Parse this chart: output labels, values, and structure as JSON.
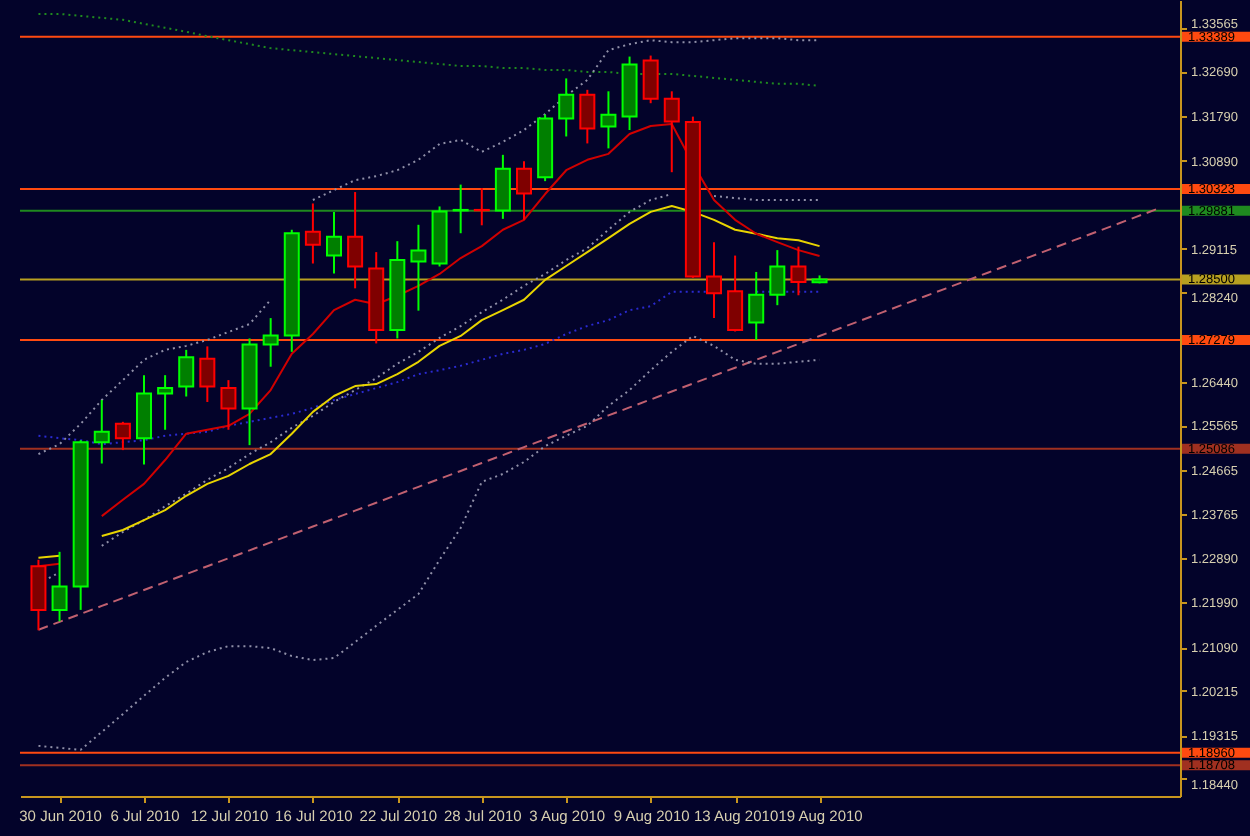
{
  "chart_data": {
    "type": "candlestick",
    "categories": [
      null,
      "30 Jun 2010",
      null,
      null,
      null,
      "6 Jul 2010",
      null,
      null,
      null,
      "12 Jul 2010",
      null,
      null,
      null,
      "16 Jul 2010",
      null,
      null,
      null,
      "22 Jul 2010",
      null,
      null,
      null,
      "28 Jul 2010",
      null,
      null,
      null,
      "3 Aug 2010",
      null,
      null,
      null,
      "9 Aug 2010",
      null,
      null,
      null,
      "13 Aug 2010",
      null,
      null,
      null,
      "19 Aug 2010",
      null,
      null,
      null,
      null,
      null,
      null,
      null,
      null,
      null,
      null,
      null,
      null,
      null,
      null,
      null,
      null
    ],
    "ohlc": [
      [
        1.2272,
        1.2285,
        1.2143,
        1.2184
      ],
      [
        1.2184,
        1.2301,
        1.2161,
        1.2231
      ],
      [
        1.2231,
        1.2526,
        1.2184,
        1.2522
      ],
      [
        1.2522,
        1.2607,
        1.2479,
        1.2543
      ],
      [
        1.2559,
        1.2563,
        1.2506,
        1.253
      ],
      [
        1.253,
        1.2657,
        1.2477,
        1.262
      ],
      [
        1.262,
        1.2657,
        1.2547,
        1.2631
      ],
      [
        1.2634,
        1.2708,
        1.2614,
        1.2693
      ],
      [
        1.269,
        1.2715,
        1.2603,
        1.2634
      ],
      [
        1.2631,
        1.2647,
        1.2547,
        1.259
      ],
      [
        1.259,
        1.2731,
        1.2516,
        1.2719
      ],
      [
        1.2719,
        1.2772,
        1.2674,
        1.2737
      ],
      [
        1.2737,
        1.295,
        1.2704,
        1.2943
      ],
      [
        1.2946,
        1.3003,
        1.2882,
        1.292
      ],
      [
        1.2898,
        1.2986,
        1.2862,
        1.2936
      ],
      [
        1.2936,
        1.3026,
        1.2832,
        1.2876
      ],
      [
        1.2872,
        1.2905,
        1.2721,
        1.2748
      ],
      [
        1.2748,
        1.2927,
        1.2731,
        1.2889
      ],
      [
        1.2886,
        1.296,
        1.2787,
        1.2908
      ],
      [
        1.2882,
        1.2997,
        1.2876,
        1.2987
      ],
      [
        1.2989,
        1.3041,
        1.2943,
        1.299
      ],
      [
        1.299,
        1.3034,
        1.2959,
        1.2989
      ],
      [
        1.2989,
        1.3101,
        1.2972,
        1.3073
      ],
      [
        1.3073,
        1.3088,
        1.297,
        1.3023
      ],
      [
        1.3056,
        1.3182,
        1.3048,
        1.3174
      ],
      [
        1.3174,
        1.3255,
        1.3138,
        1.3222
      ],
      [
        1.3222,
        1.3232,
        1.3124,
        1.3154
      ],
      [
        1.3158,
        1.3229,
        1.3114,
        1.3182
      ],
      [
        1.3178,
        1.3299,
        1.3151,
        1.3283
      ],
      [
        1.3291,
        1.3301,
        1.3205,
        1.3214
      ],
      [
        1.3214,
        1.3229,
        1.3066,
        1.3168
      ],
      [
        1.3167,
        1.3178,
        1.2853,
        1.2856
      ],
      [
        1.2856,
        1.2925,
        1.2772,
        1.2822
      ],
      [
        1.2826,
        1.2898,
        1.2745,
        1.2748
      ],
      [
        1.2763,
        1.2865,
        1.2728,
        1.2819
      ],
      [
        1.2819,
        1.2909,
        1.2798,
        1.2876
      ],
      [
        1.2876,
        1.2916,
        1.2818,
        1.2845
      ],
      [
        1.2844,
        1.2858,
        1.2842,
        1.285
      ],
      null,
      null,
      null,
      null,
      null,
      null,
      null,
      null,
      null,
      null,
      null,
      null,
      null,
      null,
      null,
      null
    ],
    "colors": [
      "#ff0000",
      "#00ff00",
      "#00ff00",
      "#00ff00",
      "#ff0000",
      "#00ff00",
      "#00ff00",
      "#00ff00",
      "#ff0000",
      "#ff0000",
      "#00ff00",
      "#00ff00",
      "#00ff00",
      "#ff0000",
      "#00ff00",
      "#ff0000",
      "#ff0000",
      "#00ff00",
      "#00ff00",
      "#00ff00",
      "#00ff00",
      "#ff0000",
      "#00ff00",
      "#ff0000",
      "#00ff00",
      "#00ff00",
      "#ff0000",
      "#00ff00",
      "#00ff00",
      "#ff0000",
      "#ff0000",
      "#ff0000",
      "#ff0000",
      "#ff0000",
      "#00ff00",
      "#00ff00",
      "#ff0000",
      "#00ff00",
      null,
      null,
      null,
      null,
      null,
      null,
      null,
      null,
      null,
      null,
      null,
      null,
      null,
      null,
      null,
      null
    ],
    "ylim": [
      1.1809,
      1.3413
    ],
    "yticks": [
      1.33565,
      {
        "value": 1.3269,
        "label": "1.32690"
      },
      {
        "value": 1.3179,
        "label": "1.31790"
      },
      {
        "value": 1.3089,
        "label": "1.30890"
      },
      1.29115,
      {
        "value": 1.2824,
        "label": "1.28240"
      },
      {
        "value": 1.2644,
        "label": "1.26440"
      },
      1.25565,
      1.24665,
      1.23765,
      {
        "value": 1.2289,
        "label": "1.22890"
      },
      {
        "value": 1.2199,
        "label": "1.21990"
      },
      {
        "value": 1.2109,
        "label": "1.21090"
      },
      1.20215,
      1.19315,
      {
        "value": 1.1844,
        "label": "1.18440"
      }
    ],
    "series": [
      {
        "type": "line",
        "line_style": "dashed",
        "color": "#c06070",
        "values": [
          1.2144,
          1.216,
          1.2176,
          1.2192,
          1.2208,
          1.2224,
          1.224,
          1.2256,
          1.2272,
          1.2288,
          1.2304,
          1.232,
          1.2336,
          1.2352,
          1.2368,
          1.2384,
          1.24,
          1.2416,
          1.2432,
          1.2448,
          1.2464,
          1.248,
          1.2496,
          1.2512,
          1.2528,
          1.2544,
          1.256,
          1.2576,
          1.2592,
          1.2608,
          1.2624,
          1.264,
          1.2656,
          1.2672,
          1.2688,
          1.2704,
          1.272,
          1.2736,
          1.2752,
          1.2768,
          1.2784,
          1.28,
          1.2816,
          1.2832,
          1.2848,
          1.2864,
          1.288,
          1.2896,
          1.2912,
          1.2928,
          1.2944,
          1.296,
          1.2976,
          1.2992
        ]
      },
      {
        "type": "line",
        "line_style": "dotted",
        "color": "#1f8a1f",
        "values": [
          1.3385,
          1.3385,
          1.3381,
          1.3377,
          1.3373,
          1.3365,
          1.3357,
          1.3349,
          1.334,
          1.3332,
          1.3324,
          1.3316,
          1.3312,
          1.3308,
          1.3304,
          1.33,
          1.3296,
          1.3292,
          1.3288,
          1.3284,
          1.328,
          1.328,
          1.3276,
          1.3276,
          1.3272,
          1.3272,
          1.3268,
          1.3268,
          1.3264,
          1.3264,
          1.3264,
          1.326,
          1.3256,
          1.3252,
          1.3248,
          1.3244,
          1.3244,
          1.324,
          null,
          null,
          null,
          null,
          null,
          null,
          null,
          null,
          null,
          null,
          null,
          null,
          null,
          null,
          null,
          null
        ]
      },
      {
        "type": "line",
        "line_style": "dotted",
        "color": "#9090a8",
        "values": [
          1.2498,
          1.2518,
          1.2559,
          1.2607,
          1.2647,
          1.2688,
          1.2708,
          1.2716,
          1.2728,
          1.2744,
          1.276,
          1.2809,
          null,
          1.301,
          1.303,
          1.305,
          1.3058,
          1.307,
          1.3091,
          1.3123,
          1.3131,
          1.3107,
          1.3127,
          1.3151,
          1.3183,
          1.322,
          1.3252,
          1.3312,
          1.3324,
          1.3332,
          1.3328,
          1.3328,
          1.3332,
          1.3336,
          1.3336,
          1.3336,
          1.3332,
          1.3332,
          null,
          null,
          null,
          null,
          null,
          null,
          null,
          null,
          null,
          null,
          null,
          null,
          null,
          null,
          null,
          null
        ]
      },
      {
        "type": "line",
        "line_style": "dotted",
        "color": "#9090a8",
        "values": [
          1.2236,
          1.226,
          null,
          1.2313,
          1.2341,
          1.2365,
          1.2393,
          1.2418,
          1.2446,
          1.247,
          1.2498,
          1.2522,
          1.2551,
          1.2575,
          1.2603,
          1.2627,
          1.2651,
          1.268,
          1.2704,
          1.2732,
          1.2756,
          1.2784,
          1.2809,
          1.2837,
          1.2861,
          1.2889,
          1.2913,
          1.295,
          1.2986,
          1.301,
          1.3022,
          null,
          1.3018,
          1.3014,
          1.301,
          1.301,
          1.301,
          1.301,
          null,
          null,
          null,
          null,
          null,
          null,
          null,
          null,
          null,
          null,
          null,
          null,
          null,
          null,
          null,
          null
        ]
      },
      {
        "type": "line",
        "line_style": "dotted",
        "color": "#9090a8",
        "values": [
          1.191,
          1.1906,
          1.1902,
          1.1938,
          1.1974,
          1.2011,
          1.2047,
          1.2079,
          1.2099,
          1.2111,
          1.2111,
          1.2107,
          1.2091,
          1.2083,
          1.2087,
          1.2119,
          1.2152,
          1.2184,
          1.2216,
          1.2285,
          1.2349,
          1.2442,
          1.2458,
          1.2482,
          1.2514,
          1.2535,
          1.2555,
          1.2595,
          1.2627,
          1.2667,
          1.2704,
          1.2736,
          1.2716,
          1.2688,
          1.268,
          1.268,
          1.2684,
          1.2688,
          null,
          null,
          null,
          null,
          null,
          null,
          null,
          null,
          null,
          null,
          null,
          null,
          null,
          null,
          null,
          null
        ]
      },
      {
        "type": "line",
        "line_style": "dotted",
        "color": "#2a2ad0",
        "values": [
          1.2535,
          1.253,
          1.2526,
          1.2518,
          1.2522,
          1.2526,
          1.2535,
          1.2539,
          1.2543,
          1.2555,
          1.2563,
          1.2571,
          1.2579,
          1.2591,
          1.2607,
          1.2619,
          1.2631,
          1.2643,
          1.2659,
          1.2667,
          1.2676,
          1.2688,
          1.27,
          1.2708,
          1.272,
          1.274,
          1.2756,
          1.2768,
          1.2788,
          1.2796,
          1.2825,
          1.2825,
          1.2825,
          null,
          1.2825,
          1.2825,
          1.2825,
          1.2825,
          null,
          null,
          null,
          null,
          null,
          null,
          null,
          null,
          null,
          null,
          null,
          null,
          null,
          null,
          null,
          null
        ]
      },
      {
        "type": "line",
        "line_style": "solid",
        "color": "#e8d400",
        "values": [
          1.2289,
          1.2293,
          null,
          1.2333,
          1.2345,
          1.2365,
          1.2385,
          1.2414,
          1.2438,
          1.2454,
          1.2478,
          1.2498,
          1.2539,
          1.2583,
          1.2615,
          1.2635,
          1.2639,
          1.2659,
          1.2684,
          1.2716,
          1.2736,
          1.2768,
          1.2788,
          1.2809,
          1.2849,
          1.2877,
          1.2905,
          1.2933,
          1.2962,
          1.2986,
          1.2998,
          1.2986,
          1.297,
          1.295,
          1.2942,
          1.2933,
          1.2929,
          1.2917,
          null,
          null,
          null,
          null,
          null,
          null,
          null,
          null,
          null,
          null,
          null,
          null,
          null,
          null,
          null,
          null
        ]
      },
      {
        "type": "line",
        "line_style": "solid",
        "color": "#d00000",
        "values": [
          1.2272,
          1.2277,
          null,
          1.2373,
          1.2406,
          1.2438,
          1.2486,
          1.2539,
          1.2547,
          1.2555,
          1.2579,
          1.2627,
          1.27,
          1.274,
          1.2788,
          1.2809,
          1.28,
          1.2817,
          1.2837,
          1.2861,
          1.2893,
          1.2917,
          1.295,
          1.297,
          1.3022,
          1.307,
          1.3091,
          1.3103,
          1.3143,
          1.3159,
          1.3163,
          1.3083,
          1.301,
          1.297,
          1.2942,
          1.2925,
          1.2909,
          1.2897,
          null,
          null,
          null,
          null,
          null,
          null,
          null,
          null,
          null,
          null,
          null,
          null,
          null,
          null,
          null,
          null
        ]
      }
    ],
    "ref_lines": [
      {
        "axis": "y",
        "value": 1.33389,
        "label": "1.33389",
        "color": "#ff4a10"
      },
      {
        "axis": "y",
        "value": 1.30323,
        "label": "1.30323",
        "color": "#ff4a10"
      },
      {
        "axis": "y",
        "value": 1.29881,
        "label": "1.29881",
        "color": "#1f8a1f"
      },
      {
        "axis": "y",
        "value": 1.285,
        "label": "1.28500",
        "color": "#b8a020"
      },
      {
        "axis": "y",
        "value": 1.27279,
        "label": "1.27279",
        "color": "#ff4a10"
      },
      {
        "axis": "y",
        "value": 1.25086,
        "label": "1.25086",
        "color": "#a03020"
      },
      {
        "axis": "y",
        "value": 1.1896,
        "label": "1.18960",
        "color": "#ff4a10"
      },
      {
        "axis": "y",
        "value": 1.18708,
        "label": "1.18708",
        "color": "#a03020"
      }
    ]
  }
}
